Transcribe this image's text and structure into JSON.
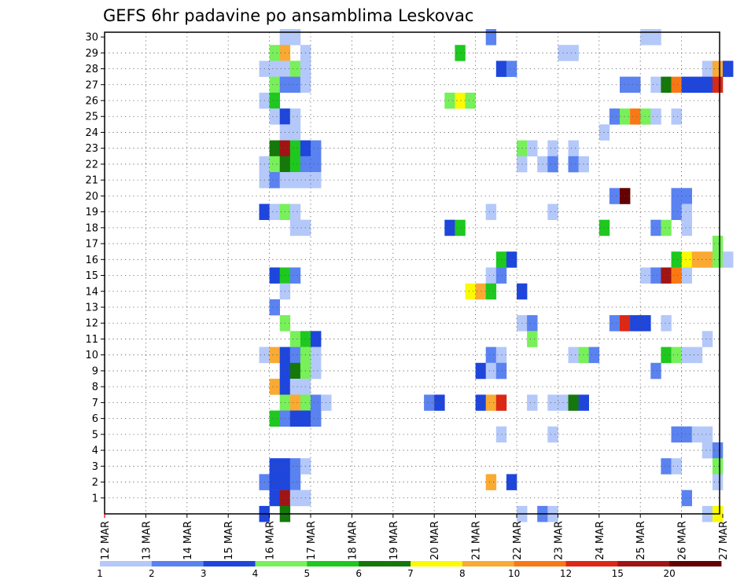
{
  "chart_data": {
    "type": "heatmap",
    "title": "GEFS 6hr padavine po ansamblima Leskovac",
    "xlabel": "",
    "ylabel": "",
    "x_start": "12 MAR 00Z",
    "x_step_hours": 6,
    "x_tick_labels": [
      "12 MAR",
      "13 MAR",
      "14 MAR",
      "15 MAR",
      "16 MAR",
      "17 MAR",
      "18 MAR",
      "19 MAR",
      "20 MAR",
      "21 MAR",
      "22 MAR",
      "23 MAR",
      "24 MAR",
      "25 MAR",
      "26 MAR",
      "27 MAR"
    ],
    "y_tick_labels": [
      "1",
      "2",
      "3",
      "4",
      "5",
      "6",
      "7",
      "8",
      "9",
      "10",
      "11",
      "12",
      "13",
      "14",
      "15",
      "16",
      "17",
      "18",
      "19",
      "20",
      "21",
      "22",
      "23",
      "24",
      "25",
      "26",
      "27",
      "28",
      "29",
      "30"
    ],
    "ylim": [
      0,
      30
    ],
    "grid": true,
    "colorbar": {
      "labels": [
        "1",
        "2",
        "3",
        "4",
        "5",
        "6",
        "7",
        "8",
        "10",
        "12",
        "15",
        "20"
      ],
      "colors": [
        "#b4c8fa",
        "#5a82f0",
        "#1e46dc",
        "#78f05a",
        "#1ec81e",
        "#14780a",
        "#fafa00",
        "#faaa32",
        "#fa7814",
        "#dc2814",
        "#a01414",
        "#640000"
      ]
    },
    "cells": [
      [
        "16 MAR 06Z",
        30,
        1
      ],
      [
        "16 MAR 12Z",
        30,
        1
      ],
      [
        "21 MAR 06Z",
        30,
        2
      ],
      [
        "25 MAR 00Z",
        30,
        1
      ],
      [
        "25 MAR 06Z",
        30,
        1
      ],
      [
        "16 MAR 00Z",
        29,
        4
      ],
      [
        "16 MAR 06Z",
        29,
        8
      ],
      [
        "16 MAR 18Z",
        29,
        1
      ],
      [
        "20 MAR 12Z",
        29,
        5
      ],
      [
        "23 MAR 00Z",
        29,
        1
      ],
      [
        "23 MAR 06Z",
        29,
        1
      ],
      [
        "15 MAR 18Z",
        28,
        1
      ],
      [
        "16 MAR 00Z",
        28,
        1
      ],
      [
        "16 MAR 06Z",
        28,
        1
      ],
      [
        "16 MAR 12Z",
        28,
        4
      ],
      [
        "16 MAR 18Z",
        28,
        1
      ],
      [
        "21 MAR 12Z",
        28,
        3
      ],
      [
        "21 MAR 18Z",
        28,
        2
      ],
      [
        "26 MAR 12Z",
        28,
        1
      ],
      [
        "26 MAR 18Z",
        28,
        8
      ],
      [
        "27 MAR 00Z",
        28,
        3
      ],
      [
        "16 MAR 00Z",
        27,
        4
      ],
      [
        "16 MAR 06Z",
        27,
        2
      ],
      [
        "16 MAR 12Z",
        27,
        2
      ],
      [
        "16 MAR 18Z",
        27,
        1
      ],
      [
        "24 MAR 12Z",
        27,
        2
      ],
      [
        "24 MAR 18Z",
        27,
        2
      ],
      [
        "25 MAR 06Z",
        27,
        1
      ],
      [
        "25 MAR 12Z",
        27,
        6
      ],
      [
        "25 MAR 18Z",
        27,
        9
      ],
      [
        "26 MAR 00Z",
        27,
        3
      ],
      [
        "26 MAR 06Z",
        27,
        3
      ],
      [
        "26 MAR 12Z",
        27,
        3
      ],
      [
        "26 MAR 18Z",
        27,
        10
      ],
      [
        "15 MAR 18Z",
        26,
        1
      ],
      [
        "16 MAR 00Z",
        26,
        5
      ],
      [
        "20 MAR 06Z",
        26,
        4
      ],
      [
        "20 MAR 12Z",
        26,
        7
      ],
      [
        "20 MAR 18Z",
        26,
        4
      ],
      [
        "16 MAR 00Z",
        25,
        1
      ],
      [
        "16 MAR 06Z",
        25,
        3
      ],
      [
        "16 MAR 12Z",
        25,
        1
      ],
      [
        "24 MAR 06Z",
        25,
        2
      ],
      [
        "24 MAR 12Z",
        25,
        4
      ],
      [
        "24 MAR 18Z",
        25,
        9
      ],
      [
        "25 MAR 00Z",
        25,
        4
      ],
      [
        "25 MAR 06Z",
        25,
        1
      ],
      [
        "25 MAR 18Z",
        25,
        1
      ],
      [
        "16 MAR 06Z",
        24,
        1
      ],
      [
        "16 MAR 12Z",
        24,
        1
      ],
      [
        "24 MAR 00Z",
        24,
        1
      ],
      [
        "16 MAR 00Z",
        23,
        6
      ],
      [
        "16 MAR 06Z",
        23,
        11
      ],
      [
        "16 MAR 12Z",
        23,
        5
      ],
      [
        "16 MAR 18Z",
        23,
        3
      ],
      [
        "17 MAR 00Z",
        23,
        2
      ],
      [
        "22 MAR 00Z",
        23,
        4
      ],
      [
        "22 MAR 06Z",
        23,
        1
      ],
      [
        "22 MAR 18Z",
        23,
        1
      ],
      [
        "23 MAR 06Z",
        23,
        1
      ],
      [
        "15 MAR 18Z",
        22,
        1
      ],
      [
        "16 MAR 00Z",
        22,
        4
      ],
      [
        "16 MAR 06Z",
        22,
        6
      ],
      [
        "16 MAR 12Z",
        22,
        5
      ],
      [
        "16 MAR 18Z",
        22,
        2
      ],
      [
        "17 MAR 00Z",
        22,
        2
      ],
      [
        "22 MAR 00Z",
        22,
        1
      ],
      [
        "22 MAR 12Z",
        22,
        1
      ],
      [
        "22 MAR 18Z",
        22,
        2
      ],
      [
        "23 MAR 06Z",
        22,
        2
      ],
      [
        "23 MAR 12Z",
        22,
        1
      ],
      [
        "15 MAR 18Z",
        21,
        1
      ],
      [
        "16 MAR 00Z",
        21,
        2
      ],
      [
        "16 MAR 06Z",
        21,
        1
      ],
      [
        "16 MAR 12Z",
        21,
        1
      ],
      [
        "16 MAR 18Z",
        21,
        1
      ],
      [
        "17 MAR 00Z",
        21,
        1
      ],
      [
        "24 MAR 06Z",
        20,
        2
      ],
      [
        "24 MAR 12Z",
        20,
        12
      ],
      [
        "25 MAR 18Z",
        20,
        2
      ],
      [
        "26 MAR 00Z",
        20,
        2
      ],
      [
        "15 MAR 18Z",
        19,
        3
      ],
      [
        "16 MAR 00Z",
        19,
        1
      ],
      [
        "16 MAR 06Z",
        19,
        4
      ],
      [
        "16 MAR 12Z",
        19,
        1
      ],
      [
        "21 MAR 06Z",
        19,
        1
      ],
      [
        "22 MAR 18Z",
        19,
        1
      ],
      [
        "25 MAR 18Z",
        19,
        2
      ],
      [
        "26 MAR 00Z",
        19,
        1
      ],
      [
        "16 MAR 12Z",
        18,
        1
      ],
      [
        "16 MAR 18Z",
        18,
        1
      ],
      [
        "20 MAR 06Z",
        18,
        3
      ],
      [
        "20 MAR 12Z",
        18,
        5
      ],
      [
        "24 MAR 00Z",
        18,
        5
      ],
      [
        "25 MAR 06Z",
        18,
        2
      ],
      [
        "25 MAR 12Z",
        18,
        4
      ],
      [
        "26 MAR 00Z",
        18,
        1
      ],
      [
        "26 MAR 18Z",
        17,
        4
      ],
      [
        "21 MAR 12Z",
        16,
        5
      ],
      [
        "21 MAR 18Z",
        16,
        3
      ],
      [
        "25 MAR 18Z",
        16,
        5
      ],
      [
        "26 MAR 00Z",
        16,
        7
      ],
      [
        "26 MAR 06Z",
        16,
        8
      ],
      [
        "26 MAR 12Z",
        16,
        8
      ],
      [
        "26 MAR 18Z",
        16,
        4
      ],
      [
        "27 MAR 00Z",
        16,
        1
      ],
      [
        "16 MAR 00Z",
        15,
        3
      ],
      [
        "16 MAR 06Z",
        15,
        5
      ],
      [
        "16 MAR 12Z",
        15,
        2
      ],
      [
        "21 MAR 06Z",
        15,
        1
      ],
      [
        "21 MAR 12Z",
        15,
        2
      ],
      [
        "25 MAR 00Z",
        15,
        1
      ],
      [
        "25 MAR 06Z",
        15,
        2
      ],
      [
        "25 MAR 12Z",
        15,
        11
      ],
      [
        "25 MAR 18Z",
        15,
        9
      ],
      [
        "26 MAR 00Z",
        15,
        1
      ],
      [
        "16 MAR 06Z",
        14,
        1
      ],
      [
        "20 MAR 18Z",
        14,
        7
      ],
      [
        "21 MAR 00Z",
        14,
        8
      ],
      [
        "21 MAR 06Z",
        14,
        5
      ],
      [
        "22 MAR 00Z",
        14,
        3
      ],
      [
        "16 MAR 00Z",
        13,
        2
      ],
      [
        "16 MAR 06Z",
        12,
        4
      ],
      [
        "22 MAR 00Z",
        12,
        1
      ],
      [
        "22 MAR 06Z",
        12,
        2
      ],
      [
        "24 MAR 06Z",
        12,
        2
      ],
      [
        "24 MAR 12Z",
        12,
        10
      ],
      [
        "24 MAR 18Z",
        12,
        3
      ],
      [
        "25 MAR 00Z",
        12,
        3
      ],
      [
        "25 MAR 12Z",
        12,
        1
      ],
      [
        "16 MAR 12Z",
        11,
        4
      ],
      [
        "16 MAR 18Z",
        11,
        5
      ],
      [
        "17 MAR 00Z",
        11,
        3
      ],
      [
        "22 MAR 06Z",
        11,
        4
      ],
      [
        "26 MAR 12Z",
        11,
        1
      ],
      [
        "15 MAR 18Z",
        10,
        1
      ],
      [
        "16 MAR 00Z",
        10,
        8
      ],
      [
        "16 MAR 06Z",
        10,
        3
      ],
      [
        "16 MAR 12Z",
        10,
        2
      ],
      [
        "16 MAR 18Z",
        10,
        4
      ],
      [
        "17 MAR 00Z",
        10,
        1
      ],
      [
        "21 MAR 06Z",
        10,
        2
      ],
      [
        "21 MAR 12Z",
        10,
        1
      ],
      [
        "23 MAR 06Z",
        10,
        1
      ],
      [
        "23 MAR 12Z",
        10,
        4
      ],
      [
        "23 MAR 18Z",
        10,
        2
      ],
      [
        "25 MAR 12Z",
        10,
        5
      ],
      [
        "25 MAR 18Z",
        10,
        4
      ],
      [
        "26 MAR 00Z",
        10,
        1
      ],
      [
        "26 MAR 06Z",
        10,
        1
      ],
      [
        "16 MAR 06Z",
        9,
        3
      ],
      [
        "16 MAR 12Z",
        9,
        6
      ],
      [
        "16 MAR 18Z",
        9,
        4
      ],
      [
        "17 MAR 00Z",
        9,
        1
      ],
      [
        "21 MAR 00Z",
        9,
        3
      ],
      [
        "21 MAR 06Z",
        9,
        1
      ],
      [
        "21 MAR 12Z",
        9,
        2
      ],
      [
        "25 MAR 06Z",
        9,
        2
      ],
      [
        "16 MAR 00Z",
        8,
        8
      ],
      [
        "16 MAR 06Z",
        8,
        3
      ],
      [
        "16 MAR 12Z",
        8,
        1
      ],
      [
        "16 MAR 18Z",
        8,
        1
      ],
      [
        "16 MAR 06Z",
        7,
        4
      ],
      [
        "16 MAR 12Z",
        7,
        8
      ],
      [
        "16 MAR 18Z",
        7,
        4
      ],
      [
        "17 MAR 00Z",
        7,
        2
      ],
      [
        "17 MAR 06Z",
        7,
        1
      ],
      [
        "19 MAR 18Z",
        7,
        2
      ],
      [
        "20 MAR 00Z",
        7,
        3
      ],
      [
        "21 MAR 00Z",
        7,
        3
      ],
      [
        "21 MAR 06Z",
        7,
        8
      ],
      [
        "21 MAR 12Z",
        7,
        10
      ],
      [
        "22 MAR 06Z",
        7,
        1
      ],
      [
        "22 MAR 18Z",
        7,
        1
      ],
      [
        "23 MAR 00Z",
        7,
        1
      ],
      [
        "23 MAR 06Z",
        7,
        6
      ],
      [
        "23 MAR 12Z",
        7,
        3
      ],
      [
        "16 MAR 00Z",
        6,
        5
      ],
      [
        "16 MAR 06Z",
        6,
        2
      ],
      [
        "16 MAR 12Z",
        6,
        3
      ],
      [
        "16 MAR 18Z",
        6,
        3
      ],
      [
        "17 MAR 00Z",
        6,
        2
      ],
      [
        "21 MAR 12Z",
        5,
        1
      ],
      [
        "22 MAR 18Z",
        5,
        1
      ],
      [
        "25 MAR 18Z",
        5,
        2
      ],
      [
        "26 MAR 00Z",
        5,
        2
      ],
      [
        "26 MAR 06Z",
        5,
        1
      ],
      [
        "26 MAR 12Z",
        5,
        1
      ],
      [
        "26 MAR 12Z",
        4,
        1
      ],
      [
        "26 MAR 18Z",
        4,
        2
      ],
      [
        "16 MAR 00Z",
        3,
        3
      ],
      [
        "16 MAR 06Z",
        3,
        3
      ],
      [
        "16 MAR 12Z",
        3,
        2
      ],
      [
        "16 MAR 18Z",
        3,
        1
      ],
      [
        "25 MAR 12Z",
        3,
        2
      ],
      [
        "25 MAR 18Z",
        3,
        1
      ],
      [
        "26 MAR 18Z",
        3,
        4
      ],
      [
        "15 MAR 18Z",
        2,
        2
      ],
      [
        "16 MAR 00Z",
        2,
        3
      ],
      [
        "16 MAR 06Z",
        2,
        3
      ],
      [
        "16 MAR 12Z",
        2,
        2
      ],
      [
        "21 MAR 06Z",
        2,
        8
      ],
      [
        "21 MAR 18Z",
        2,
        3
      ],
      [
        "26 MAR 18Z",
        2,
        1
      ],
      [
        "16 MAR 00Z",
        1,
        3
      ],
      [
        "16 MAR 06Z",
        1,
        11
      ],
      [
        "16 MAR 12Z",
        1,
        1
      ],
      [
        "16 MAR 18Z",
        1,
        1
      ],
      [
        "26 MAR 00Z",
        1,
        2
      ],
      [
        "15 MAR 18Z",
        0,
        3
      ],
      [
        "16 MAR 06Z",
        0,
        6
      ],
      [
        "22 MAR 00Z",
        0,
        1
      ],
      [
        "22 MAR 12Z",
        0,
        2
      ],
      [
        "22 MAR 18Z",
        0,
        1
      ],
      [
        "26 MAR 12Z",
        0,
        1
      ],
      [
        "26 MAR 18Z",
        0,
        7
      ]
    ]
  }
}
